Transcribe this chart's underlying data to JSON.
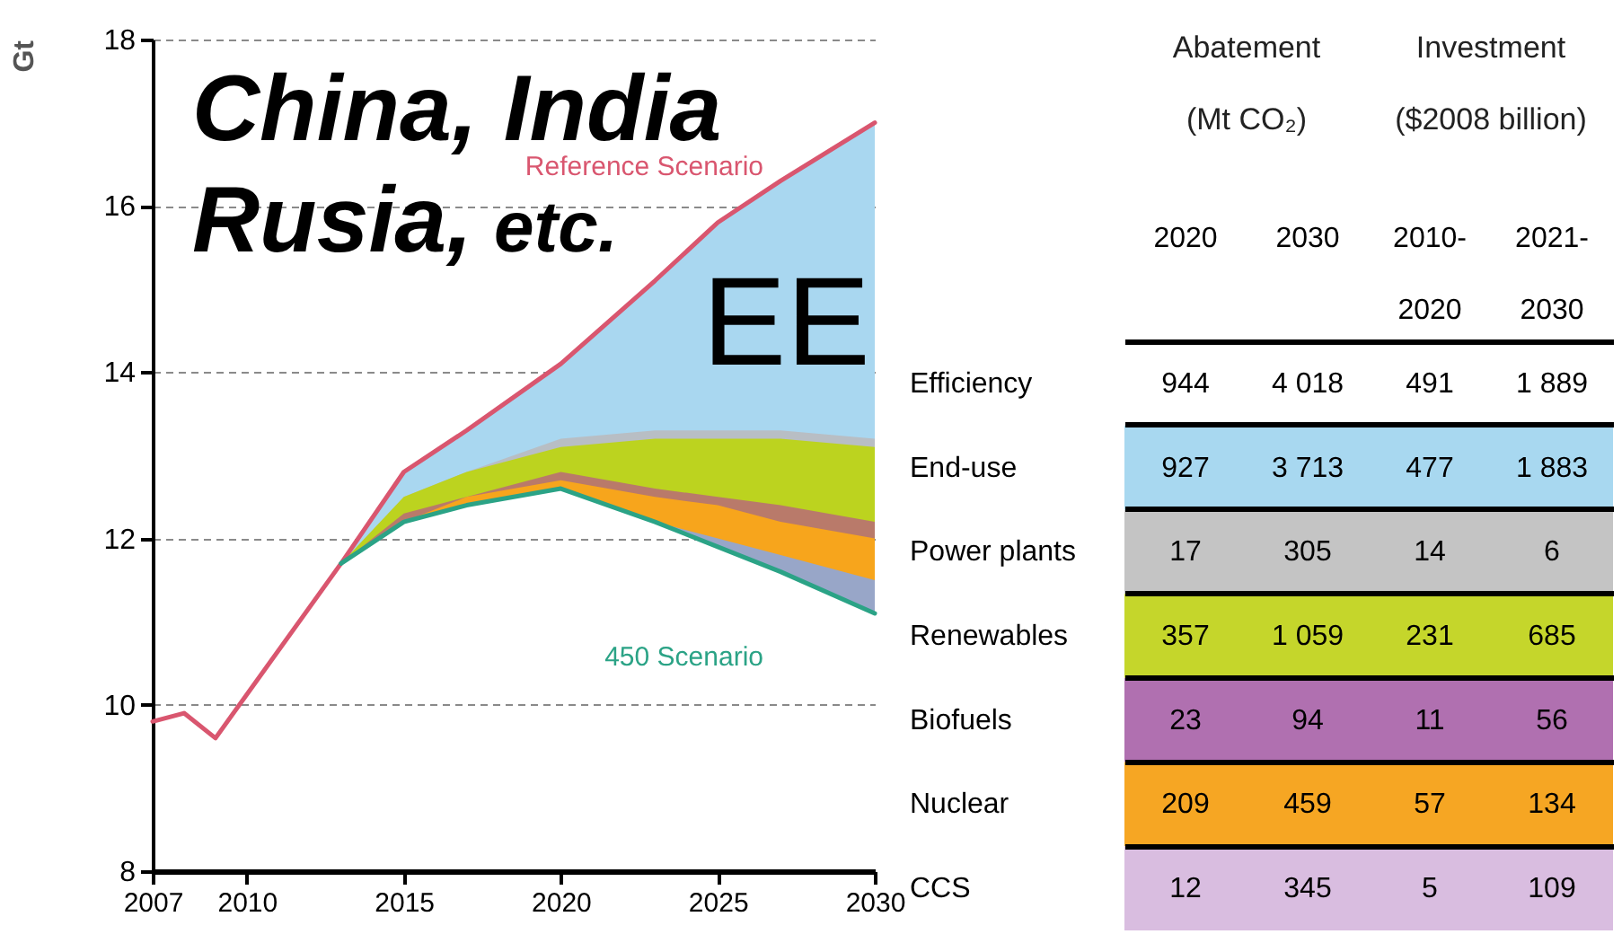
{
  "chart_data": [
    {
      "type": "area",
      "ylabel": "Gt",
      "annotations": [
        "China, India",
        "Rusia,",
        "etc.",
        "EE"
      ],
      "xlim": [
        2007,
        2030
      ],
      "xticks": [
        2007,
        2010,
        2015,
        2020,
        2025,
        2030
      ],
      "ylim": [
        8,
        18
      ],
      "yticks": [
        8,
        10,
        12,
        14,
        16,
        18
      ],
      "grid": "y",
      "series": [
        {
          "type": "area",
          "color": "#a9d7f0",
          "x": [
            2013,
            2015,
            2017,
            2020,
            2023,
            2025,
            2027,
            2030
          ],
          "values": [
            11.7,
            12.8,
            13.3,
            14.1,
            15.1,
            15.8,
            16.3,
            17.0
          ]
        },
        {
          "type": "area",
          "color": "#b8bec4",
          "x": [
            2013,
            2015,
            2017,
            2020,
            2023,
            2025,
            2027,
            2030
          ],
          "values": [
            11.7,
            12.5,
            12.8,
            13.2,
            13.3,
            13.3,
            13.3,
            13.2
          ]
        },
        {
          "type": "area",
          "color": "#bcd31f",
          "x": [
            2013,
            2015,
            2017,
            2020,
            2023,
            2025,
            2027,
            2030
          ],
          "values": [
            11.7,
            12.5,
            12.8,
            13.1,
            13.2,
            13.2,
            13.2,
            13.1
          ]
        },
        {
          "type": "area",
          "color": "#b97a6a",
          "x": [
            2013,
            2015,
            2017,
            2020,
            2023,
            2025,
            2027,
            2030
          ],
          "values": [
            11.7,
            12.3,
            12.5,
            12.8,
            12.6,
            12.5,
            12.4,
            12.2
          ]
        },
        {
          "type": "area",
          "color": "#f7a51c",
          "x": [
            2013,
            2015,
            2017,
            2020,
            2023,
            2025,
            2027,
            2030
          ],
          "values": [
            11.7,
            12.2,
            12.5,
            12.7,
            12.5,
            12.4,
            12.2,
            12.0
          ]
        },
        {
          "type": "area",
          "color": "#98a6c8",
          "x": [
            2023,
            2025,
            2027,
            2030
          ],
          "values": [
            12.2,
            12.0,
            11.8,
            11.5
          ]
        },
        {
          "name": "Reference Scenario",
          "type": "line",
          "color": "#d9566f",
          "x": [
            2007,
            2008,
            2009,
            2013,
            2015,
            2017,
            2020,
            2023,
            2025,
            2027,
            2030
          ],
          "values": [
            9.8,
            9.9,
            9.6,
            11.7,
            12.8,
            13.3,
            14.1,
            15.1,
            15.8,
            16.3,
            17.0
          ]
        },
        {
          "name": "450 Scenario",
          "type": "line",
          "color": "#2ba386",
          "x": [
            2013,
            2015,
            2017,
            2020,
            2023,
            2025,
            2027,
            2030
          ],
          "values": [
            11.7,
            12.2,
            12.4,
            12.6,
            12.2,
            11.9,
            11.6,
            11.1
          ]
        }
      ]
    },
    {
      "type": "heatmap",
      "annotations": [
        "Abatement\n(Mt CO₂)",
        "Investment\n($2008 billion)"
      ],
      "categories": [
        "2020",
        "2030",
        "2010-\n2020",
        "2021-\n2030"
      ],
      "y_categories": [
        "Efficiency",
        "End-use",
        "Power plants",
        "Renewables",
        "Biofuels",
        "Nuclear",
        "CCS"
      ],
      "cells": [
        [
          944,
          4018,
          491,
          1889
        ],
        [
          927,
          3713,
          477,
          1883
        ],
        [
          17,
          305,
          14,
          6
        ],
        [
          357,
          1059,
          231,
          685
        ],
        [
          23,
          94,
          11,
          56
        ],
        [
          209,
          459,
          57,
          134
        ],
        [
          12,
          345,
          5,
          109
        ]
      ],
      "data_labels": true,
      "colors": [
        "#ffffff",
        "#a8d8f0",
        "#c4c4c4",
        "#c5d62b",
        "#b070b0",
        "#f6a623",
        "#d9bde0"
      ],
      "grid": "y"
    }
  ]
}
